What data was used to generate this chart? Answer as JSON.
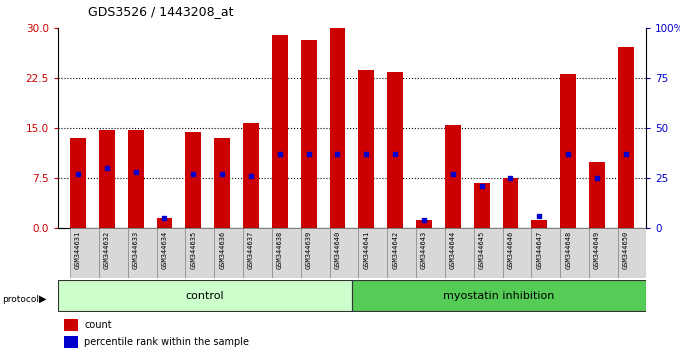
{
  "title": "GDS3526 / 1443208_at",
  "samples": [
    "GSM344631",
    "GSM344632",
    "GSM344633",
    "GSM344634",
    "GSM344635",
    "GSM344636",
    "GSM344637",
    "GSM344638",
    "GSM344639",
    "GSM344640",
    "GSM344641",
    "GSM344642",
    "GSM344643",
    "GSM344644",
    "GSM344645",
    "GSM344646",
    "GSM344647",
    "GSM344648",
    "GSM344649",
    "GSM344650"
  ],
  "counts": [
    13.5,
    14.8,
    14.8,
    1.5,
    14.5,
    13.5,
    15.8,
    29.0,
    28.2,
    30.0,
    23.8,
    23.5,
    1.2,
    15.5,
    6.8,
    7.5,
    1.3,
    23.2,
    10.0,
    27.2
  ],
  "percentile_ranks": [
    27,
    30,
    28,
    5,
    27,
    27,
    26,
    37,
    37,
    37,
    37,
    37,
    4,
    27,
    21,
    25,
    6,
    37,
    25,
    37
  ],
  "control_count": 10,
  "ylim_left": [
    0,
    30
  ],
  "ylim_right": [
    0,
    100
  ],
  "yticks_left": [
    0,
    7.5,
    15,
    22.5,
    30
  ],
  "yticks_right": [
    0,
    25,
    50,
    75,
    100
  ],
  "yticklabels_right": [
    "0",
    "25",
    "50",
    "75",
    "100%"
  ],
  "bar_color": "#cc0000",
  "marker_color": "#0000cc",
  "control_bg": "#ccffcc",
  "myostatin_bg": "#55cc55",
  "legend_count": "count",
  "legend_pct": "percentile rank within the sample"
}
